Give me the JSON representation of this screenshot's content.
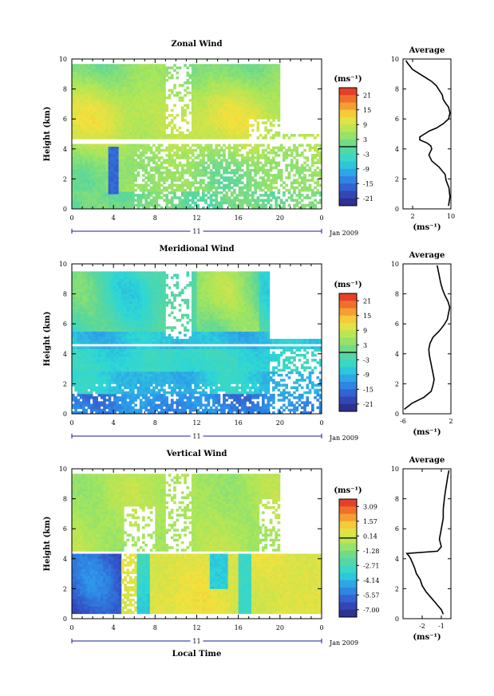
{
  "chart_data": [
    {
      "type": "heatmap",
      "title": "Zonal Wind",
      "ylabel": "Height (km)",
      "xlabel": "",
      "xlim": [
        0,
        24
      ],
      "ylim": [
        0,
        10
      ],
      "xticks": [
        "0",
        "4",
        "8",
        "12",
        "16",
        "20",
        "0"
      ],
      "yticks": [
        "0",
        "2",
        "4",
        "6",
        "8",
        "10"
      ],
      "date_day": "11",
      "date_label": "Jan 2009",
      "colorbar": {
        "unit": "(ms⁻¹)",
        "ticks": [
          "21",
          "15",
          "9",
          "3",
          "-3",
          "-9",
          "-15",
          "-21"
        ],
        "range": [
          -24,
          24
        ]
      },
      "white_gap": [
        4.4,
        4.7
      ]
    },
    {
      "type": "heatmap",
      "title": "Meridional Wind",
      "ylabel": "Height (km)",
      "xlabel": "",
      "xlim": [
        0,
        24
      ],
      "ylim": [
        0,
        10
      ],
      "xticks": [
        "0",
        "4",
        "8",
        "12",
        "16",
        "20",
        "0"
      ],
      "yticks": [
        "0",
        "2",
        "4",
        "6",
        "8",
        "10"
      ],
      "date_day": "11",
      "date_label": "Jan 2009",
      "colorbar": {
        "unit": "(ms⁻¹)",
        "ticks": [
          "21",
          "15",
          "9",
          "3",
          "-3",
          "-9",
          "-15",
          "-21"
        ],
        "range": [
          -24,
          24
        ]
      },
      "white_gap": [
        4.5,
        4.7
      ]
    },
    {
      "type": "heatmap",
      "title": "Vertical Wind",
      "ylabel": "Height (km)",
      "xlabel": "Local Time",
      "xlim": [
        0,
        24
      ],
      "ylim": [
        0,
        10
      ],
      "xticks": [
        "0",
        "4",
        "8",
        "12",
        "16",
        "20",
        "0"
      ],
      "yticks": [
        "0",
        "2",
        "4",
        "6",
        "8",
        "10"
      ],
      "date_day": "11",
      "date_label": "Jan 2009",
      "colorbar": {
        "unit": "(ms⁻¹)",
        "ticks": [
          "3.09",
          "1.57",
          "0.14",
          "-1.28",
          "-2.71",
          "-4.14",
          "-5.57",
          "-7.00"
        ],
        "range": [
          -7.7,
          3.8
        ]
      },
      "white_gap": [
        4.3,
        4.5
      ]
    },
    {
      "type": "line",
      "title": "Average",
      "xlabel": "(ms⁻¹)",
      "xlim": [
        0,
        10
      ],
      "ylim": [
        0,
        10
      ],
      "xticks": [
        "2",
        "10"
      ],
      "xtick_values": [
        2,
        10
      ],
      "yticks": [
        "0",
        "2",
        "4",
        "6",
        "8",
        "10"
      ],
      "x": [
        9.5,
        9.8,
        9.6,
        9.0,
        8.8,
        7.5,
        6.0,
        5.4,
        6.0,
        5.8,
        5.0,
        3.5,
        3.5,
        4.5,
        5.5,
        7.0,
        8.5,
        9.5,
        9.8,
        9.5,
        9.0,
        8.4,
        8.2,
        7.6,
        7.0,
        6.0,
        5.0,
        4.0,
        3.0,
        2.0,
        1.5,
        1.0,
        0.6
      ],
      "y": [
        0.2,
        0.8,
        1.4,
        1.9,
        2.3,
        2.8,
        3.2,
        3.6,
        4.0,
        4.2,
        4.4,
        4.6,
        4.8,
        5.0,
        5.2,
        5.4,
        5.7,
        6.0,
        6.4,
        6.8,
        7.0,
        7.3,
        7.6,
        7.9,
        8.2,
        8.5,
        8.7,
        8.9,
        9.1,
        9.3,
        9.5,
        9.7,
        9.9
      ]
    },
    {
      "type": "line",
      "title": "Average",
      "xlabel": "(ms⁻¹)",
      "xlim": [
        -6,
        2
      ],
      "ylim": [
        0,
        10
      ],
      "xticks": [
        "-6",
        "2"
      ],
      "xtick_values": [
        -6,
        2
      ],
      "yticks": [
        "0",
        "2",
        "4",
        "6",
        "8",
        "10"
      ],
      "x": [
        -5.8,
        -4.5,
        -2.5,
        -1.3,
        -1.0,
        -0.8,
        -1.0,
        -1.2,
        -1.4,
        -1.6,
        -1.7,
        -1.5,
        -1.0,
        0.0,
        0.8,
        1.4,
        1.6,
        1.8,
        1.5,
        1.0,
        0.6,
        0.3,
        0.1,
        -0.1,
        -0.3
      ],
      "y": [
        0.3,
        0.7,
        1.1,
        1.5,
        1.9,
        2.3,
        2.7,
        3.1,
        3.5,
        3.9,
        4.3,
        4.7,
        5.1,
        5.5,
        5.9,
        6.3,
        6.7,
        7.1,
        7.5,
        7.9,
        8.3,
        8.7,
        9.1,
        9.5,
        9.9
      ]
    },
    {
      "type": "line",
      "title": "Average",
      "xlabel": "(ms⁻¹)",
      "xlim": [
        -3,
        -0.5
      ],
      "ylim": [
        0,
        10
      ],
      "xticks": [
        "-2",
        "-1"
      ],
      "xtick_values": [
        -2,
        -1
      ],
      "yticks": [
        "0",
        "2",
        "4",
        "6",
        "8",
        "10"
      ],
      "x": [
        -0.9,
        -1.0,
        -1.2,
        -1.4,
        -1.6,
        -1.8,
        -2.0,
        -2.1,
        -2.3,
        -2.4,
        -2.5,
        -2.6,
        -2.7,
        -2.8,
        -1.2,
        -1.0,
        -1.1,
        -1.0,
        -0.9,
        -0.9,
        -0.85,
        -0.8,
        -0.75,
        -0.7,
        -0.65,
        -0.6
      ],
      "y": [
        0.3,
        0.6,
        0.9,
        1.2,
        1.5,
        1.8,
        2.2,
        2.6,
        3.0,
        3.4,
        3.7,
        4.0,
        4.2,
        4.35,
        4.5,
        4.8,
        5.3,
        6.0,
        6.7,
        7.3,
        7.9,
        8.4,
        8.8,
        9.2,
        9.6,
        9.9
      ]
    }
  ]
}
